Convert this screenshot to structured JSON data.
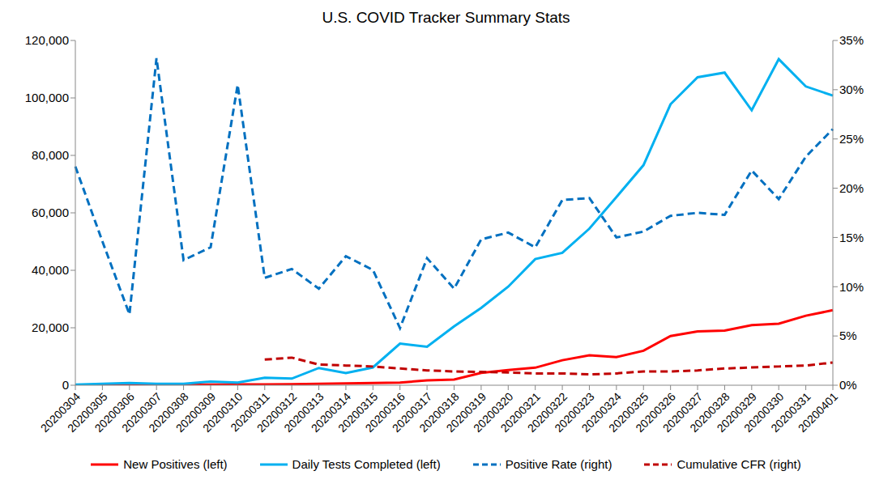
{
  "chart_data": {
    "type": "line",
    "title": "U.S. COVID Tracker Summary Stats",
    "categories": [
      "20200304",
      "20200305",
      "20200306",
      "20200307",
      "20200308",
      "20200309",
      "20200310",
      "20200311",
      "20200312",
      "20200313",
      "20200314",
      "20200315",
      "20200316",
      "20200317",
      "20200318",
      "20200319",
      "20200320",
      "20200321",
      "20200322",
      "20200323",
      "20200324",
      "20200325",
      "20200326",
      "20200327",
      "20200328",
      "20200329",
      "20200330",
      "20200331",
      "20200401"
    ],
    "series": [
      {
        "name": "New Positives (left)",
        "color": "#ff0000",
        "line_style": "solid",
        "axis": "y",
        "values": [
          30,
          60,
          100,
          100,
          150,
          200,
          250,
          300,
          350,
          500,
          600,
          800,
          900,
          1700,
          2000,
          4300,
          5300,
          6100,
          8700,
          10400,
          9800,
          12000,
          17100,
          18700,
          19000,
          20900,
          21400,
          24200,
          26100
        ]
      },
      {
        "name": "Daily Tests Completed (left)",
        "color": "#00b0f0",
        "line_style": "solid",
        "axis": "y",
        "values": [
          200,
          500,
          800,
          500,
          500,
          1300,
          900,
          2600,
          2300,
          6000,
          4200,
          6200,
          14500,
          13400,
          20500,
          26900,
          34300,
          43900,
          46100,
          54500,
          65500,
          76600,
          97800,
          107200,
          108800,
          95700,
          113500,
          104000,
          100800
        ]
      },
      {
        "name": "Positive Rate (right)",
        "color": "#0070c0",
        "line_style": "dashed",
        "axis": "y2",
        "values": [
          22.2,
          14.6,
          7.2,
          33.2,
          12.7,
          14,
          30.5,
          10.9,
          11.8,
          9.8,
          13.1,
          11.7,
          5.8,
          12.9,
          9.8,
          14.8,
          15.5,
          14,
          18.8,
          19,
          15,
          15.6,
          17.2,
          17.5,
          17.3,
          21.8,
          18.9,
          23.2,
          26
        ]
      },
      {
        "name": "Cumulative CFR (right)",
        "color": "#c00000",
        "line_style": "dashed",
        "axis": "y2",
        "values": [
          null,
          null,
          null,
          null,
          null,
          null,
          null,
          2.6,
          2.8,
          2.1,
          2,
          1.9,
          1.7,
          1.5,
          1.4,
          1.35,
          1.3,
          1.2,
          1.2,
          1.1,
          1.2,
          1.4,
          1.4,
          1.5,
          1.7,
          1.8,
          1.9,
          2,
          2.3
        ]
      }
    ],
    "ylim": [
      0,
      120000
    ],
    "yticks": [
      0,
      {
        "value": 20000,
        "label": "20,000"
      },
      {
        "value": 40000,
        "label": "40,000"
      },
      {
        "value": 60000,
        "label": "60,000"
      },
      {
        "value": 80000,
        "label": "80,000"
      },
      {
        "value": 100000,
        "label": "100,000"
      },
      {
        "value": 120000,
        "label": "120,000"
      }
    ],
    "y2lim": [
      0,
      35
    ],
    "y2ticks": [
      {
        "value": 0,
        "label": "0%"
      },
      {
        "value": 5,
        "label": "5%"
      },
      {
        "value": 10,
        "label": "10%"
      },
      {
        "value": 15,
        "label": "15%"
      },
      {
        "value": 20,
        "label": "20%"
      },
      {
        "value": 25,
        "label": "25%"
      },
      {
        "value": 30,
        "label": "30%"
      },
      {
        "value": 35,
        "label": "35%"
      }
    ],
    "grid": false,
    "legend": "bottom",
    "marker": "none"
  }
}
